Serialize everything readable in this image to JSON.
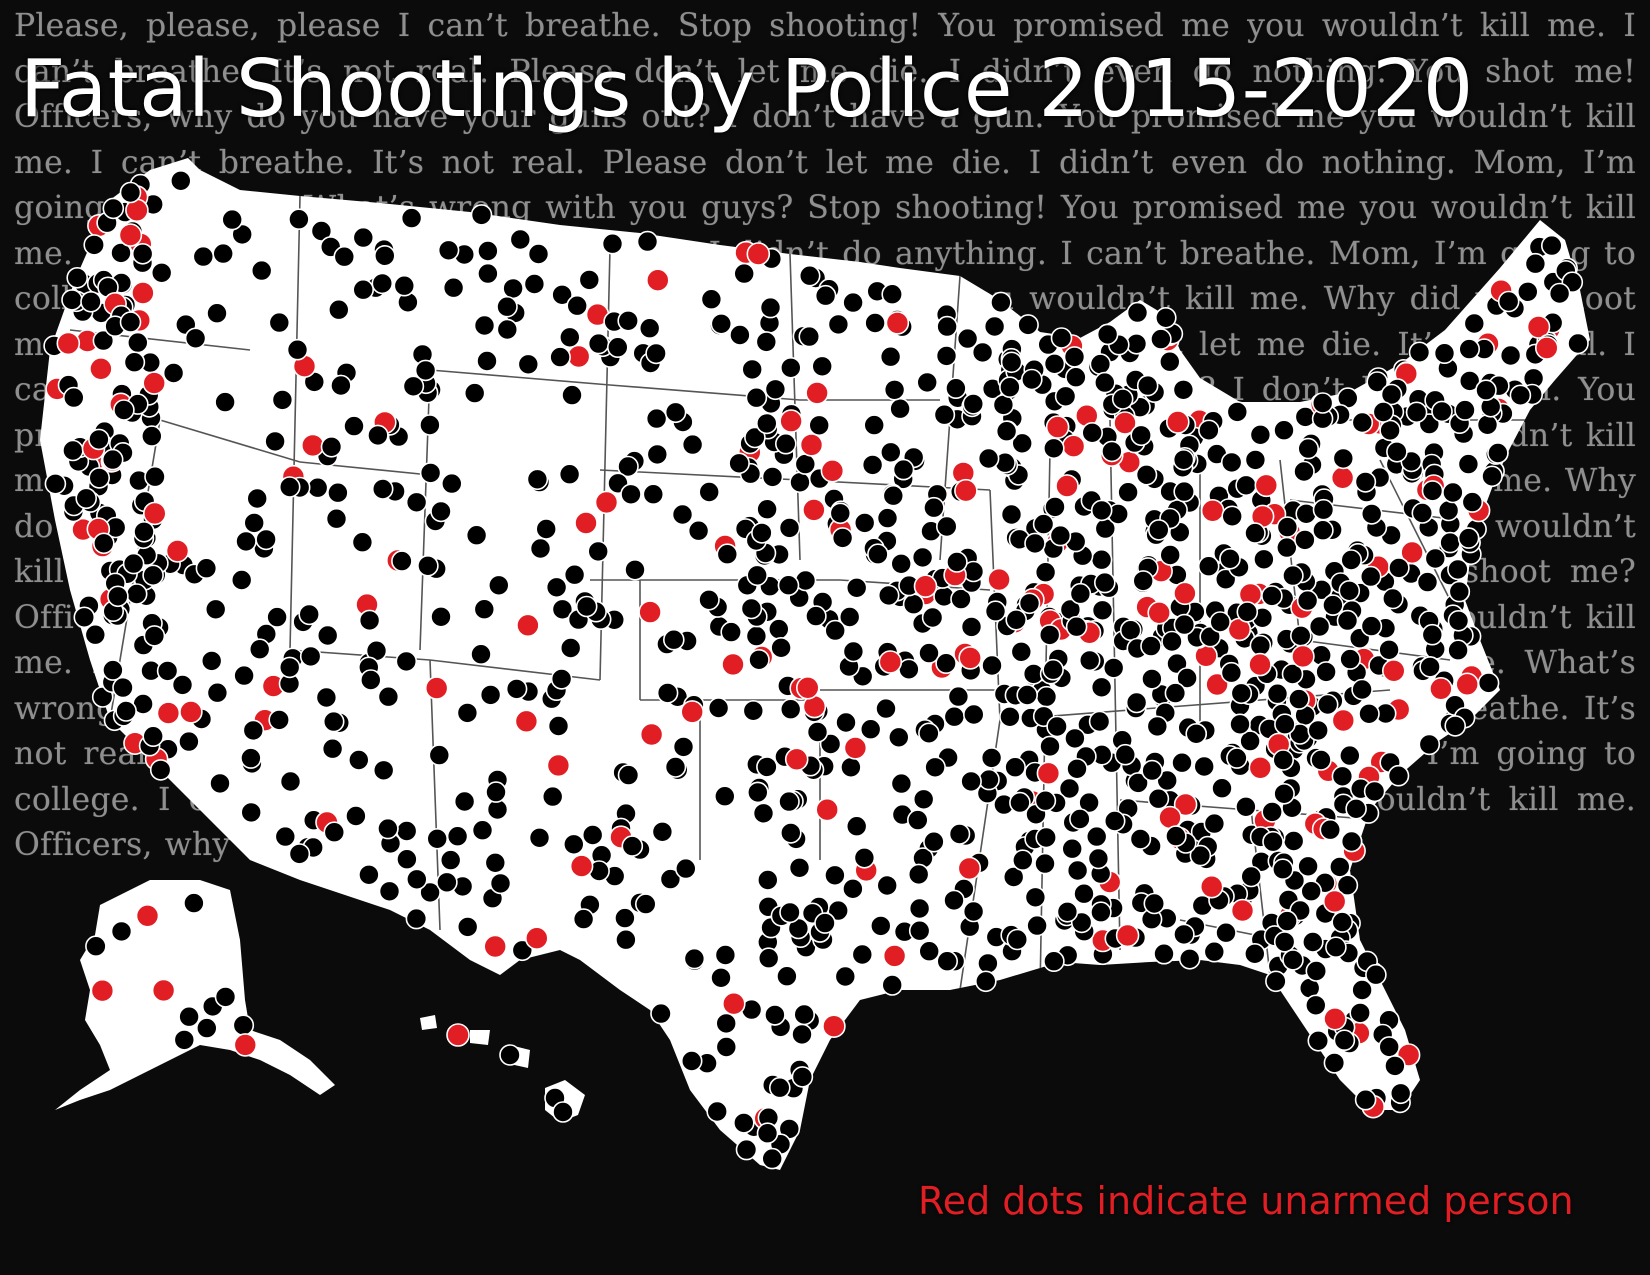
{
  "title": "Fatal Shootings by Police 2015-2020",
  "legend": "Red dots indicate unarmed person",
  "background_text": "Please, please, please I can’t breathe. Stop shooting! You promised me you wouldn’t kill me. I can’t breathe. It’s not real. Please don’t let me die. I didn’t even do nothing. You shot me! Officers, why do you have your guns out? I don’t have a gun. You promised me you wouldn’t kill me. I can’t breathe. It’s not real. Please don’t let me die. I didn’t even do nothing. Mom, I’m going to college. What’s wrong with you guys? Stop shooting! You promised me you wouldn’t kill me. It’s not real. Please don’t let me die. I didn’t do anything. I can’t breathe. Mom, I’m going to college. I don’t wanna die too young. You promised me you wouldn’t kill me. Why did you shoot me? Please, please, please I can’t breathe. It’s not real. Please don’t let me die. It’s not real. I can’t breathe. You shot me! Officers, why do you have your guns out? I don’t have a gun. You promised me you wouldn’t kill me. Mom, I’m going to college. You promised me you wouldn’t kill me. I can’t breathe. I didn’t even do nothing. I don’t wanna die too young. You promised me. Why do you have your guns out? Please, please, please I can’t breathe. You promised me you wouldn’t kill me. I can’t breathe. Please don’t let me die. I didn’t tell me to. Why did you shoot me? Officers, why do you have your guns out? I don’t have a gun. You promised me you wouldn’t kill me. I can’t breathe. It’s not real. Please don’t let me die. Mom, I’m going to college. What’s wrong with you guys? Stop shooting! You promised me you wouldn’t kill me. I can’t breathe. It’s not real. Please don’t let me die. I can’t breathe. I didn’t even do nothing. Mom, I’m going to college. I can’t breathe. I don’t wanna die too young. You promised me you wouldn’t kill me. Officers, why do you have your guns out? Stop shooting!",
  "colors": {
    "background": "#0b0b0b",
    "background_text": "#8f8f8f",
    "map_fill": "#ffffff",
    "border_line": "#555555",
    "dot_armed": "#000000",
    "dot_unarmed": "#e01e24",
    "title": "#ffffff",
    "legend": "#e01e24"
  },
  "map": {
    "regions": [
      "contiguous-us",
      "alaska",
      "hawaii"
    ],
    "dot_categories": [
      "armed",
      "unarmed"
    ]
  }
}
